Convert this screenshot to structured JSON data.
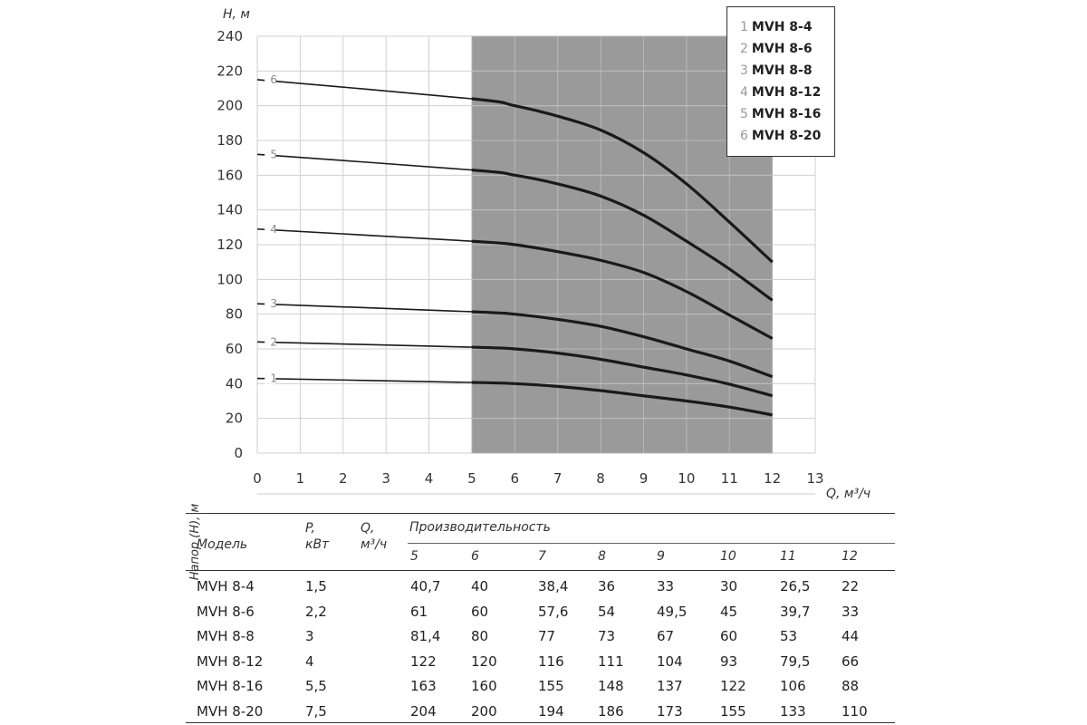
{
  "chart_data": {
    "type": "line",
    "xlabel": "Q, м³/ч",
    "ylabel": "H, м",
    "xlim": [
      0,
      13
    ],
    "ylim": [
      0,
      240
    ],
    "xticks": [
      "0",
      "1",
      "2",
      "3",
      "4",
      "5",
      "6",
      "7",
      "8",
      "9",
      "10",
      "11",
      "12",
      "13"
    ],
    "yticks": [
      "0",
      "20",
      "40",
      "60",
      "80",
      "100",
      "120",
      "140",
      "160",
      "180",
      "200",
      "220",
      "240"
    ],
    "grid": true,
    "shaded_range": [
      5,
      12
    ],
    "legend_position": "top-right",
    "series": [
      {
        "num": "1",
        "name": "MVH 8-4",
        "x": [
          0,
          5,
          6,
          7,
          8,
          9,
          10,
          11,
          12
        ],
        "values": [
          43,
          40.7,
          40,
          38.4,
          36,
          33,
          30,
          26.5,
          22
        ]
      },
      {
        "num": "2",
        "name": "MVH 8-6",
        "x": [
          0,
          5,
          6,
          7,
          8,
          9,
          10,
          11,
          12
        ],
        "values": [
          64,
          61,
          60,
          57.6,
          54,
          49.5,
          45,
          39.7,
          33
        ]
      },
      {
        "num": "3",
        "name": "MVH 8-8",
        "x": [
          0,
          5,
          6,
          7,
          8,
          9,
          10,
          11,
          12
        ],
        "values": [
          86,
          81.4,
          80,
          77,
          73,
          67,
          60,
          53,
          44
        ]
      },
      {
        "num": "4",
        "name": "MVH 8-12",
        "x": [
          0,
          5,
          6,
          7,
          8,
          9,
          10,
          11,
          12
        ],
        "values": [
          129,
          122,
          120,
          116,
          111,
          104,
          93,
          79.5,
          66
        ]
      },
      {
        "num": "5",
        "name": "MVH 8-16",
        "x": [
          0,
          5,
          6,
          7,
          8,
          9,
          10,
          11,
          12
        ],
        "values": [
          172,
          163,
          160,
          155,
          148,
          137,
          122,
          106,
          88
        ]
      },
      {
        "num": "6",
        "name": "MVH 8-20",
        "x": [
          0,
          5,
          6,
          7,
          8,
          9,
          10,
          11,
          12
        ],
        "values": [
          215,
          204,
          200,
          194,
          186,
          173,
          155,
          133,
          110
        ]
      }
    ]
  },
  "table": {
    "col_model": "Модель",
    "col_power": "P,\nкВт",
    "col_flow": "Q,\nм³/ч",
    "col_perf": "Производительность",
    "head_label": "Напор (H), м",
    "flows": [
      "5",
      "6",
      "7",
      "8",
      "9",
      "10",
      "11",
      "12"
    ],
    "rows": [
      {
        "model": "MVH 8-4",
        "power": "1,5",
        "values": [
          "40,7",
          "40",
          "38,4",
          "36",
          "33",
          "30",
          "26,5",
          "22"
        ]
      },
      {
        "model": "MVH 8-6",
        "power": "2,2",
        "values": [
          "61",
          "60",
          "57,6",
          "54",
          "49,5",
          "45",
          "39,7",
          "33"
        ]
      },
      {
        "model": "MVH 8-8",
        "power": "3",
        "values": [
          "81,4",
          "80",
          "77",
          "73",
          "67",
          "60",
          "53",
          "44"
        ]
      },
      {
        "model": "MVH 8-12",
        "power": "4",
        "values": [
          "122",
          "120",
          "116",
          "111",
          "104",
          "93",
          "79,5",
          "66"
        ]
      },
      {
        "model": "MVH 8-16",
        "power": "5,5",
        "values": [
          "163",
          "160",
          "155",
          "148",
          "137",
          "122",
          "106",
          "88"
        ]
      },
      {
        "model": "MVH 8-20",
        "power": "7,5",
        "values": [
          "204",
          "200",
          "194",
          "186",
          "173",
          "155",
          "133",
          "110"
        ]
      }
    ]
  },
  "colors": {
    "shade": "#9a9a9a",
    "curve": "#1a1a1a",
    "grid": "#cfcfcf"
  }
}
